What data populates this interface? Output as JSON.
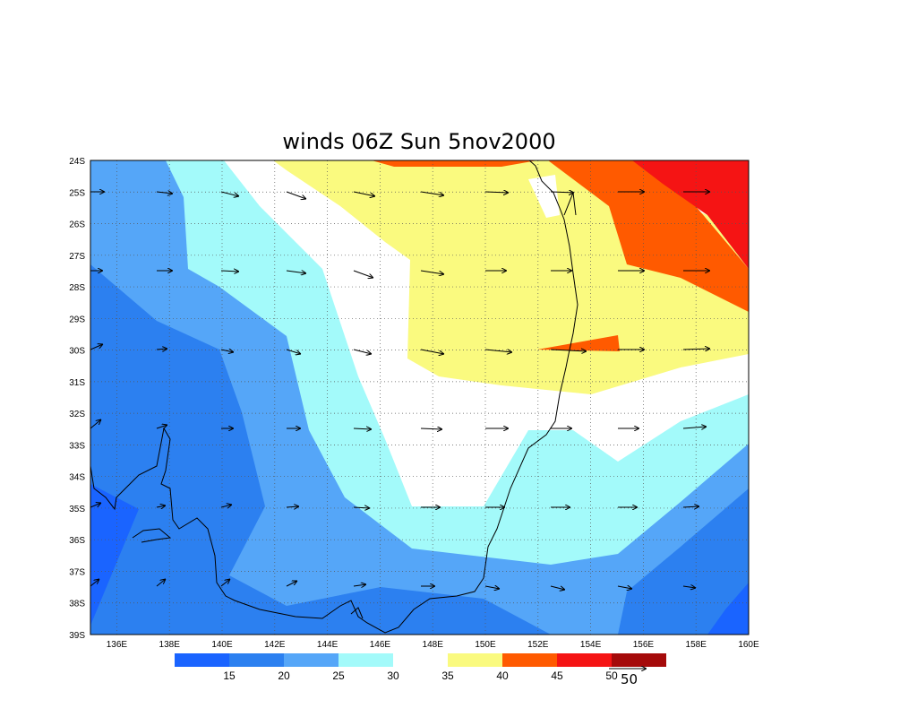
{
  "title": "winds 06Z Sun 5nov2000",
  "map": {
    "lon_range": [
      135,
      160
    ],
    "lat_range": [
      -39,
      -24
    ],
    "lon_ticks": [
      "136E",
      "138E",
      "140E",
      "142E",
      "144E",
      "146E",
      "148E",
      "150E",
      "152E",
      "154E",
      "156E",
      "158E",
      "160E"
    ],
    "lat_ticks": [
      "24S",
      "25S",
      "26S",
      "27S",
      "28S",
      "29S",
      "30S",
      "31S",
      "32S",
      "33S",
      "34S",
      "35S",
      "36S",
      "37S",
      "38S",
      "39S"
    ],
    "grid": true
  },
  "colorbar": {
    "levels": [
      "15",
      "20",
      "25",
      "30",
      "35",
      "40",
      "45",
      "50"
    ],
    "colors": [
      "#1a64ff",
      "#2c80f0",
      "#55a6f8",
      "#a3fafa",
      "#ffffff",
      "#fafa7f",
      "#ff5a00",
      "#f51414",
      "#a50a0a"
    ]
  },
  "reference_vector": {
    "label": "50"
  }
}
